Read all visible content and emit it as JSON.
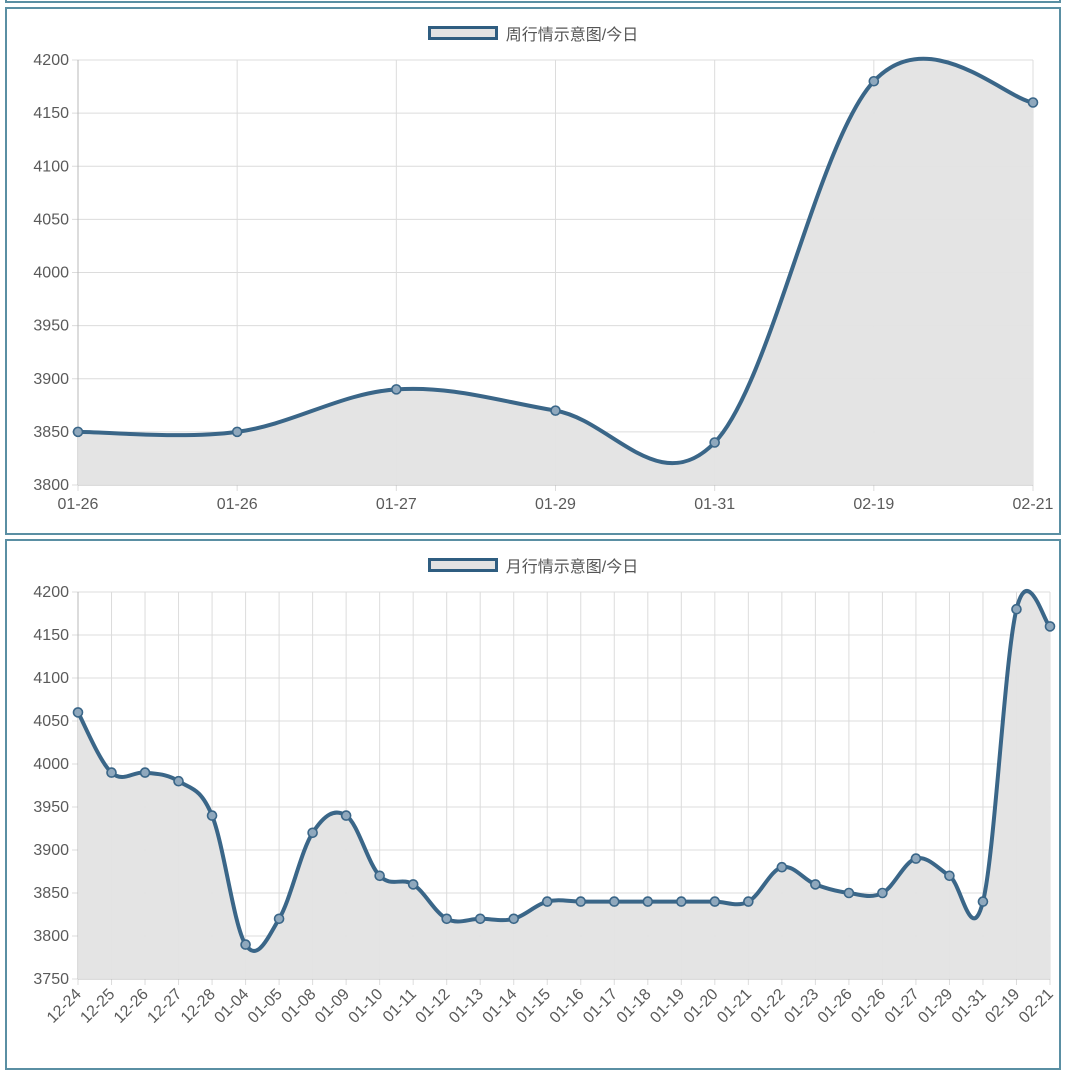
{
  "colors": {
    "line": "#3a6688",
    "fill": "#e3e3e3",
    "grid": "#dcdcdc",
    "panel_border": "#5a8fa3",
    "point_fill": "#8fa8bd"
  },
  "chart_data": [
    {
      "type": "area",
      "legend": "周行情示意图/今日",
      "legend_position": "top",
      "grid": true,
      "categories": [
        "01-26",
        "01-26",
        "01-27",
        "01-29",
        "01-31",
        "02-19",
        "02-21"
      ],
      "series": [
        {
          "name": "周行情示意图/今日",
          "values": [
            3850,
            3850,
            3890,
            3870,
            3840,
            4180,
            4160
          ]
        }
      ],
      "ylim": [
        3800,
        4200
      ],
      "yticks": [
        "4200",
        "4150",
        "4100",
        "4050",
        "4000",
        "3950",
        "3900",
        "3850",
        "3800"
      ]
    },
    {
      "type": "area",
      "legend": "月行情示意图/今日",
      "legend_position": "top",
      "grid": true,
      "categories": [
        "12-24",
        "12-25",
        "12-26",
        "12-27",
        "12-28",
        "01-04",
        "01-05",
        "01-08",
        "01-09",
        "01-10",
        "01-11",
        "01-12",
        "01-13",
        "01-14",
        "01-15",
        "01-16",
        "01-17",
        "01-18",
        "01-19",
        "01-20",
        "01-21",
        "01-22",
        "01-23",
        "01-26",
        "01-26",
        "01-27",
        "01-29",
        "01-31",
        "02-19",
        "02-21"
      ],
      "series": [
        {
          "name": "月行情示意图/今日",
          "values": [
            4060,
            3990,
            3990,
            3980,
            3940,
            3790,
            3820,
            3920,
            3940,
            3870,
            3860,
            3820,
            3820,
            3820,
            3840,
            3840,
            3840,
            3840,
            3840,
            3840,
            3840,
            3880,
            3860,
            3850,
            3850,
            3890,
            3870,
            3840,
            4180,
            4160
          ]
        }
      ],
      "ylim": [
        3750,
        4200
      ],
      "yticks": [
        "4200",
        "4150",
        "4100",
        "4050",
        "4000",
        "3950",
        "3900",
        "3850",
        "3800",
        "3750"
      ]
    }
  ]
}
